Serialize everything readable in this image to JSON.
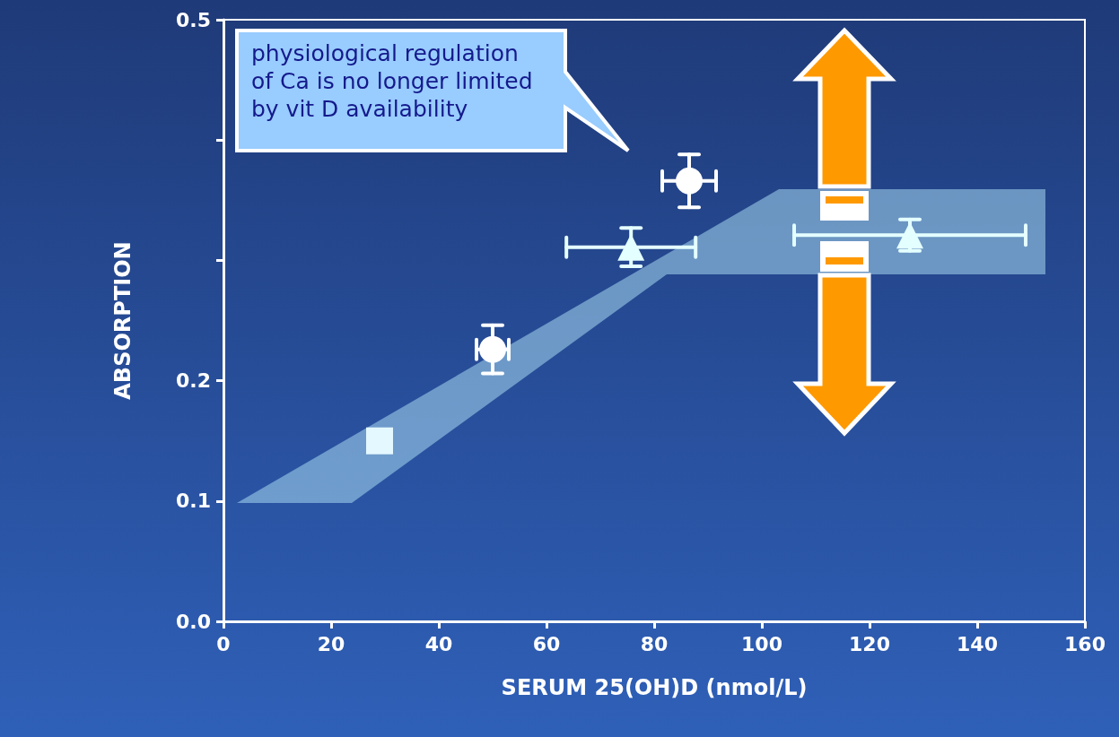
{
  "chart_data": {
    "type": "scatter",
    "xlabel": "SERUM 25(OH)D (nmol/L)",
    "ylabel": "ABSORPTION",
    "xlim": [
      0,
      160
    ],
    "xticks": [
      0,
      20,
      40,
      60,
      80,
      100,
      120,
      140,
      160
    ],
    "ylim": [
      0,
      0.5
    ],
    "yticks": [
      {
        "value": 0,
        "label": "0.0"
      },
      0.1,
      0.2,
      {
        "value": 0.3,
        "label": null
      },
      {
        "value": 0.4,
        "label": null
      },
      0.5
    ],
    "grid": false,
    "annotations": [
      "physiological regulation  of Ca is no longer limited by vit D availability"
    ],
    "series": [
      {
        "marker": "square",
        "color": "#e4f8ff",
        "x": [
          29
        ],
        "values": [
          0.15
        ]
      },
      {
        "marker": "circle",
        "color": "#ffffff",
        "x": [
          50,
          86.5
        ],
        "values": [
          0.226,
          0.366
        ],
        "errors": [
          0.02,
          0.022
        ],
        "xerrors": [
          3,
          5
        ]
      },
      {
        "marker": "triangle",
        "color": "#e4ffff",
        "x": [
          75.7,
          127.5
        ],
        "values": [
          0.311,
          0.321
        ],
        "errors": [
          0.016,
          0.013
        ],
        "xerrors": [
          12,
          21.5
        ]
      }
    ]
  }
}
